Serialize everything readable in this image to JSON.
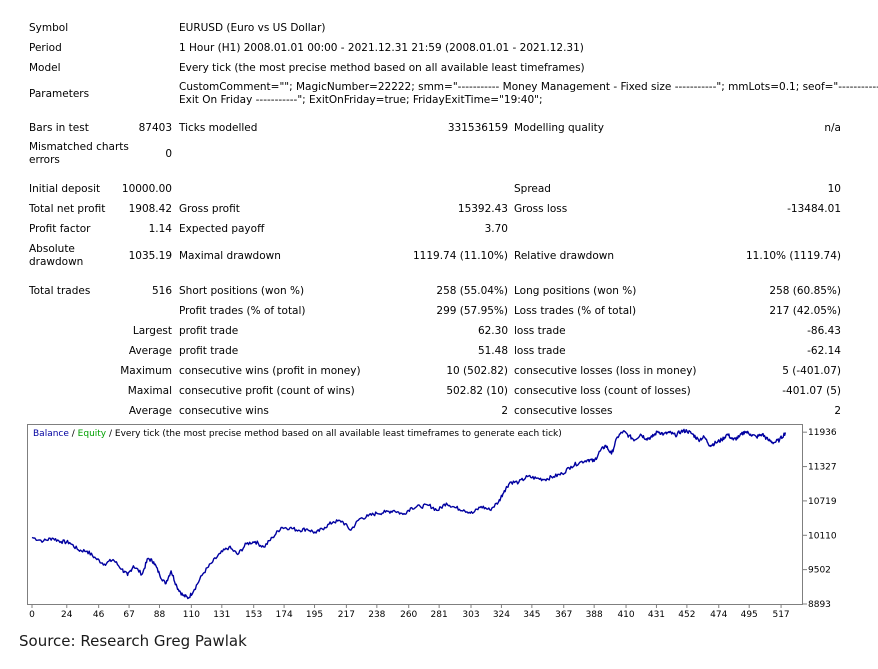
{
  "report": {
    "header": {
      "symbol_label": "Symbol",
      "symbol_value": "EURUSD (Euro vs US Dollar)",
      "period_label": "Period",
      "period_value": "1 Hour (H1) 2008.01.01 00:00 - 2021.12.31 21:59 (2008.01.01 - 2021.12.31)",
      "model_label": "Model",
      "model_value": "Every tick (the most precise method based on all available least timeframes)",
      "parameters_label": "Parameters",
      "parameters_line1": "CustomComment=\"\"; MagicNumber=22222; smm=\"----------- Money Management - Fixed size -----------\"; mmLots=0.1; seof=\"-----------",
      "parameters_line2": "Exit On Friday -----------\"; ExitOnFriday=true; FridayExitTime=\"19:40\";"
    },
    "tests": {
      "bars_label": "Bars in test",
      "bars_value": "87403",
      "ticks_label": "Ticks modelled",
      "ticks_value": "331536159",
      "quality_label": "Modelling quality",
      "quality_value": "n/a",
      "mismatched_label": "Mismatched charts errors",
      "mismatched_value": "0"
    },
    "results": {
      "initial_deposit_label": "Initial deposit",
      "initial_deposit_value": "10000.00",
      "spread_label": "Spread",
      "spread_value": "10",
      "net_profit_label": "Total net profit",
      "net_profit_value": "1908.42",
      "gross_profit_label": "Gross profit",
      "gross_profit_value": "15392.43",
      "gross_loss_label": "Gross loss",
      "gross_loss_value": "-13484.01",
      "profit_factor_label": "Profit factor",
      "profit_factor_value": "1.14",
      "expected_payoff_label": "Expected payoff",
      "expected_payoff_value": "3.70",
      "abs_drawdown_label": "Absolute drawdown",
      "abs_drawdown_value": "1035.19",
      "max_drawdown_label": "Maximal drawdown",
      "max_drawdown_value": "1119.74 (11.10%)",
      "rel_drawdown_label": "Relative drawdown",
      "rel_drawdown_value": "11.10% (1119.74)"
    },
    "trades": {
      "total_label": "Total trades",
      "total_value": "516",
      "short_label": "Short positions (won %)",
      "short_value": "258 (55.04%)",
      "long_label": "Long positions (won %)",
      "long_value": "258 (60.85%)",
      "profit_trades_label": "Profit trades (% of total)",
      "profit_trades_value": "299 (57.95%)",
      "loss_trades_label": "Loss trades (% of total)",
      "loss_trades_value": "217 (42.05%)",
      "largest_label": "Largest",
      "largest_profit_label": "profit trade",
      "largest_profit_value": "62.30",
      "largest_loss_label": "loss trade",
      "largest_loss_value": "-86.43",
      "average_label": "Average",
      "average_profit_label": "profit trade",
      "average_profit_value": "51.48",
      "average_loss_label": "loss trade",
      "average_loss_value": "-62.14",
      "maximum_label": "Maximum",
      "max_cons_wins_label": "consecutive wins (profit in money)",
      "max_cons_wins_value": "10 (502.82)",
      "max_cons_losses_label": "consecutive losses (loss in money)",
      "max_cons_losses_value": "5 (-401.07)",
      "maximal_label": "Maximal",
      "maximal_cons_profit_label": "consecutive profit (count of wins)",
      "maximal_cons_profit_value": "502.82 (10)",
      "maximal_cons_loss_label": "consecutive loss (count of losses)",
      "maximal_cons_loss_value": "-401.07 (5)",
      "avg_label": "Average",
      "avg_cons_wins_label": "consecutive wins",
      "avg_cons_wins_value": "2",
      "avg_cons_losses_label": "consecutive losses",
      "avg_cons_losses_value": "2"
    }
  },
  "chart_data": {
    "type": "line",
    "legend": {
      "balance": "Balance",
      "separator1": " / ",
      "equity": "Equity",
      "separator2": " / ",
      "text": "Every tick (the most precise method based on all available least timeframes to generate each tick)"
    },
    "colors": {
      "balance": "#0000a0",
      "equity": "#00a000",
      "axis": "#7f7f7f"
    },
    "x_ticks": [
      "0",
      "24",
      "46",
      "67",
      "88",
      "110",
      "131",
      "153",
      "174",
      "195",
      "217",
      "238",
      "260",
      "281",
      "303",
      "324",
      "345",
      "367",
      "388",
      "410",
      "431",
      "452",
      "474",
      "495",
      "517"
    ],
    "y_ticks": [
      "11936",
      "11327",
      "10719",
      "10110",
      "9502",
      "8893"
    ],
    "xlim": [
      0,
      528
    ],
    "ylim": [
      8893,
      12010
    ],
    "series": [
      {
        "name": "Balance",
        "x": [
          0,
          8,
          14,
          20,
          26,
          32,
          38,
          44,
          50,
          56,
          62,
          66,
          70,
          76,
          80,
          84,
          88,
          92,
          96,
          100,
          104,
          108,
          112,
          118,
          124,
          130,
          136,
          142,
          148,
          154,
          160,
          166,
          172,
          178,
          184,
          190,
          196,
          202,
          208,
          214,
          220,
          226,
          232,
          238,
          244,
          250,
          256,
          262,
          268,
          274,
          280,
          286,
          292,
          298,
          304,
          310,
          316,
          322,
          326,
          330,
          336,
          342,
          348,
          354,
          360,
          366,
          372,
          378,
          384,
          388,
          392,
          396,
          400,
          404,
          408,
          412,
          416,
          420,
          424,
          428,
          432,
          436,
          440,
          444,
          448,
          452,
          456,
          460,
          464,
          468,
          472,
          476,
          480,
          484,
          488,
          492,
          496,
          500,
          504,
          508,
          512,
          516,
          520
        ],
        "y": [
          10070,
          10010,
          10060,
          10000,
          9980,
          9850,
          9830,
          9700,
          9600,
          9680,
          9510,
          9400,
          9570,
          9420,
          9700,
          9640,
          9420,
          9250,
          9480,
          9200,
          9050,
          9000,
          9150,
          9430,
          9620,
          9790,
          9900,
          9770,
          9960,
          10000,
          9900,
          10070,
          10250,
          10240,
          10200,
          10220,
          10150,
          10250,
          10350,
          10360,
          10200,
          10400,
          10450,
          10500,
          10520,
          10550,
          10480,
          10600,
          10620,
          10640,
          10550,
          10680,
          10600,
          10560,
          10500,
          10620,
          10560,
          10700,
          10900,
          11050,
          11050,
          11150,
          11120,
          11100,
          11150,
          11200,
          11330,
          11400,
          11450,
          11420,
          11600,
          11700,
          11550,
          11850,
          11950,
          11870,
          11800,
          11900,
          11820,
          11850,
          11950,
          11900,
          11930,
          11880,
          11950,
          11960,
          11900,
          11800,
          11850,
          11700,
          11750,
          11800,
          11900,
          11800,
          11850,
          11950,
          11900,
          11850,
          11900,
          11800,
          11750,
          11800,
          11930
        ]
      }
    ]
  },
  "source_note": "Source: Research Greg Pawlak"
}
